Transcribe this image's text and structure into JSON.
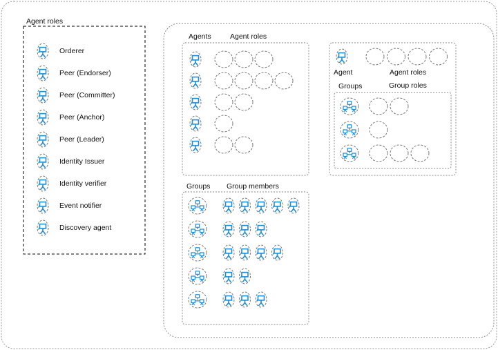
{
  "legend": {
    "title": "Agent roles",
    "roles": [
      {
        "label": "Orderer",
        "icon": "agent-icon"
      },
      {
        "label": "Peer (Endorser)",
        "icon": "agent-icon"
      },
      {
        "label": "Peer (Committer)",
        "icon": "agent-icon"
      },
      {
        "label": "Peer (Anchor)",
        "icon": "agent-icon"
      },
      {
        "label": "Peer (Leader)",
        "icon": "agent-icon"
      },
      {
        "label": "Identity Issuer",
        "icon": "agent-icon"
      },
      {
        "label": "Identity verifier",
        "icon": "agent-icon"
      },
      {
        "label": "Event notifier",
        "icon": "agent-icon"
      },
      {
        "label": "Discovery agent",
        "icon": "agent-icon"
      }
    ]
  },
  "agents_panel": {
    "col_agents": "Agents",
    "col_roles": "Agent roles",
    "rows": [
      {
        "agent_icon": "agent-icon",
        "role_slots": 3
      },
      {
        "agent_icon": "agent-icon",
        "role_slots": 4
      },
      {
        "agent_icon": "agent-icon",
        "role_slots": 2
      },
      {
        "agent_icon": "agent-icon",
        "role_slots": 1
      },
      {
        "agent_icon": "agent-icon",
        "role_slots": 2
      }
    ]
  },
  "groups_panel": {
    "col_groups": "Groups",
    "col_members": "Group members",
    "rows": [
      {
        "group_icon": "group-icon",
        "members": 5
      },
      {
        "group_icon": "group-icon",
        "members": 3
      },
      {
        "group_icon": "group-icon",
        "members": 4
      },
      {
        "group_icon": "group-icon",
        "members": 2
      },
      {
        "group_icon": "group-icon",
        "members": 3
      }
    ]
  },
  "agent_detail": {
    "agent_label": "Agent",
    "roles_label": "Agent roles",
    "role_slots": 4,
    "groups_label": "Groups",
    "group_roles_label": "Group roles",
    "group_rows": [
      {
        "group_icon": "group-icon",
        "role_slots": 2
      },
      {
        "group_icon": "group-icon",
        "role_slots": 1
      },
      {
        "group_icon": "group-icon",
        "role_slots": 3
      }
    ]
  },
  "colors": {
    "icon": "#1f8fd6",
    "border": "#888888",
    "text": "#111111"
  }
}
